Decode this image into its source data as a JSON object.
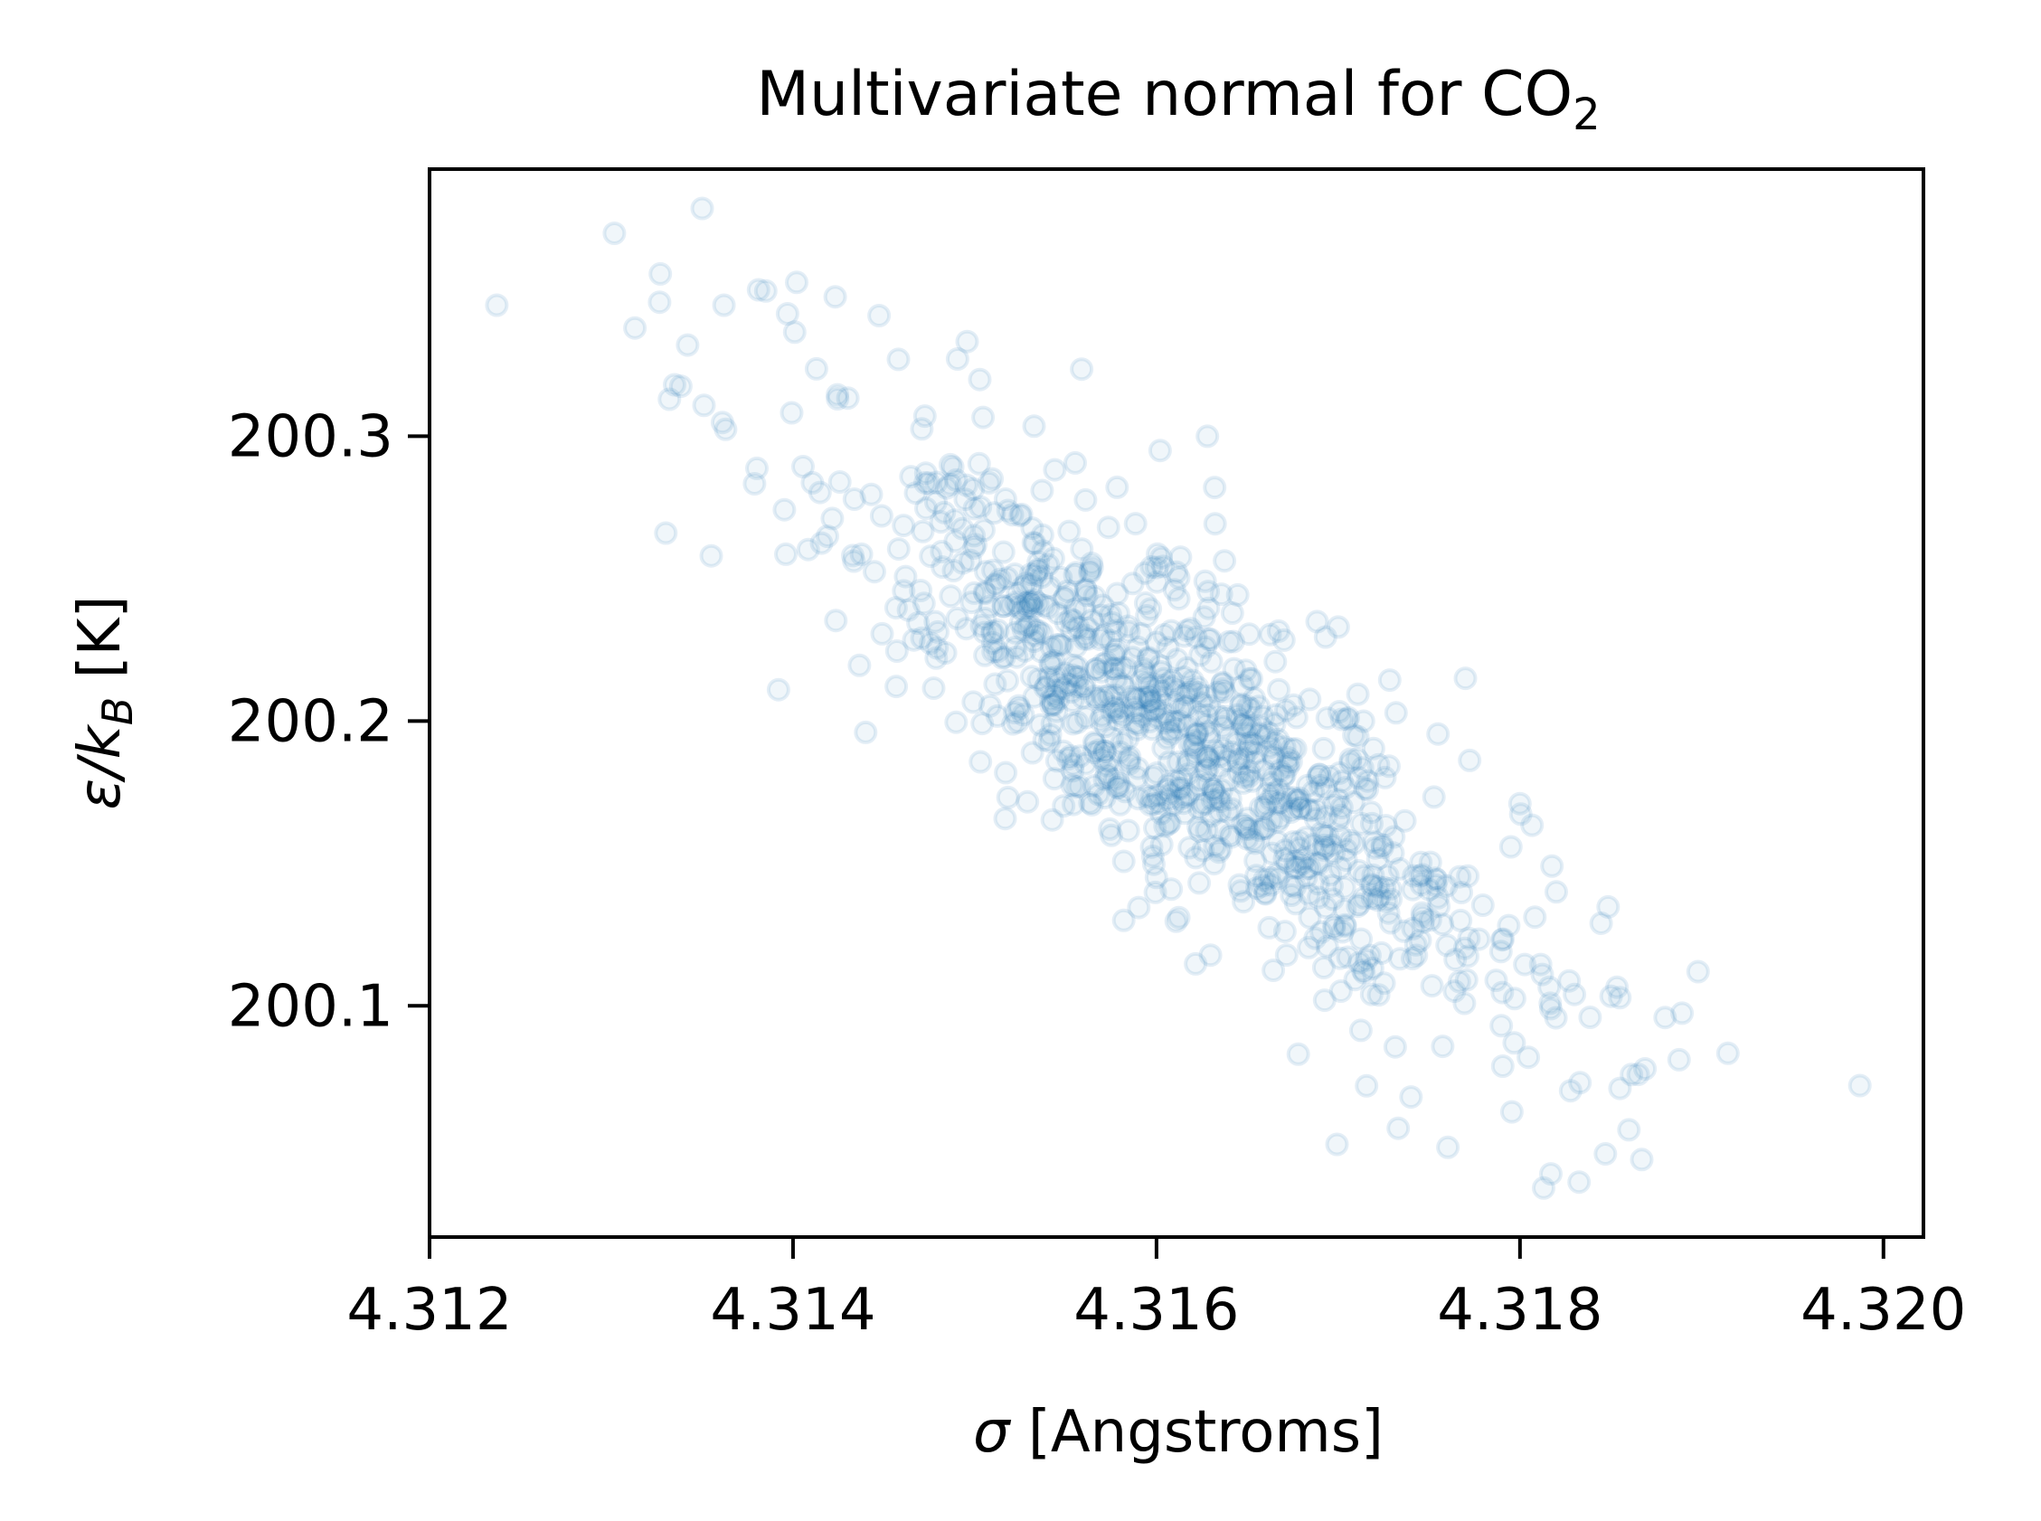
{
  "chart_data": {
    "type": "scatter",
    "title": "Multivariate normal for CO",
    "title_subscript": "2",
    "xlabel_symbol": "σ",
    "xlabel_rest": " [Angstroms]",
    "ylabel_symbol": "ε/k",
    "ylabel_sub": "B",
    "ylabel_rest": " [K]",
    "xlim": [
      4.312,
      4.32022
    ],
    "ylim": [
      200.0188,
      200.3938
    ],
    "x_ticks": [
      4.312,
      4.314,
      4.316,
      4.318,
      4.32
    ],
    "x_tick_labels": [
      "4.312",
      "4.314",
      "4.316",
      "4.318",
      "4.320"
    ],
    "y_ticks": [
      200.1,
      200.2,
      200.3
    ],
    "y_tick_labels": [
      "200.1",
      "200.2",
      "200.3"
    ],
    "grid": false,
    "marker": "hollow-circle",
    "marker_color": "#1f77b4",
    "marker_alpha": 0.12,
    "distribution": {
      "count": 1000,
      "mean_x": 4.3161,
      "mean_y": 200.195,
      "std_x": 0.00095,
      "std_y": 0.052,
      "correlation": -0.83
    },
    "points": [
      [
        4.31237,
        200.346
      ],
      [
        4.3135,
        200.38
      ],
      [
        4.31313,
        200.338
      ],
      [
        4.31327,
        200.357
      ],
      [
        4.31332,
        200.313
      ],
      [
        4.31342,
        200.332
      ],
      [
        4.31362,
        200.346
      ],
      [
        4.31385,
        200.351
      ],
      [
        4.31397,
        200.343
      ],
      [
        4.31402,
        200.354
      ],
      [
        4.3133,
        200.266
      ],
      [
        4.31355,
        200.258
      ],
      [
        4.31392,
        200.211
      ],
      [
        4.3144,
        200.196
      ],
      [
        4.31458,
        200.327
      ],
      [
        4.31628,
        200.3
      ],
      [
        4.31632,
        200.282
      ],
      [
        4.31602,
        200.295
      ],
      [
        4.31898,
        200.112
      ],
      [
        4.31987,
        200.072
      ],
      [
        4.31813,
        200.036
      ],
      [
        4.31817,
        200.041
      ],
      [
        4.31847,
        200.048
      ],
      [
        4.31867,
        200.046
      ],
      [
        4.31833,
        200.073
      ],
      [
        4.31855,
        200.071
      ],
      [
        4.3174,
        200.068
      ],
      [
        4.31733,
        200.057
      ],
      [
        4.31678,
        200.083
      ],
      [
        4.31582,
        200.13
      ],
      [
        4.3183,
        200.104
      ],
      [
        4.3182,
        200.14
      ],
      [
        4.318,
        200.171
      ],
      [
        4.3177,
        200.215
      ],
      [
        4.317,
        200.233
      ]
    ]
  }
}
